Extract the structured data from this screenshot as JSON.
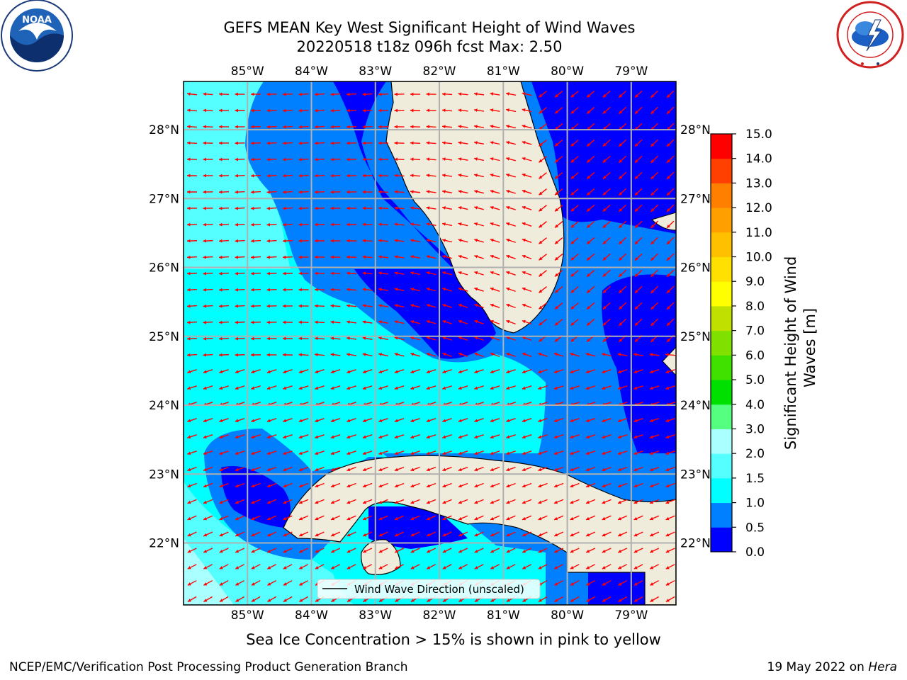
{
  "title": {
    "line1": "GEFS MEAN Key West Significant Height of Wind Waves",
    "line2": "20220518 t18z 096h fcst   Max: 2.50"
  },
  "map": {
    "lon_ticks": [
      "85°W",
      "84°W",
      "83°W",
      "82°W",
      "81°W",
      "80°W",
      "79°W"
    ],
    "lat_ticks": [
      "28°N",
      "27°N",
      "26°N",
      "25°N",
      "24°N",
      "23°N",
      "22°N"
    ],
    "lon_values": [
      -85,
      -84,
      -83,
      -82,
      -81,
      -80,
      -79
    ],
    "lat_values": [
      28,
      27,
      26,
      25,
      24,
      23,
      22
    ],
    "extent": {
      "west": -86.0,
      "east": -78.3,
      "south": 21.1,
      "north": 28.7
    },
    "grid": true,
    "arrow_color": "#ff0000",
    "land_color": "#efecdc",
    "legend_label": "Wind Wave Direction (unscaled)"
  },
  "colorbar": {
    "label": "Significant Height of Wind Waves [m]",
    "label_line1": "Significant Height of Wind",
    "label_line2": "Waves [m]",
    "ticks": [
      "0.0",
      "0.5",
      "1.0",
      "1.5",
      "2.0",
      "3.0",
      "4.0",
      "5.0",
      "6.0",
      "7.0",
      "8.0",
      "9.0",
      "10.0",
      "11.0",
      "12.0",
      "13.0",
      "14.0",
      "15.0"
    ],
    "colors": [
      "#0000ff",
      "#0080ff",
      "#00ffff",
      "#55ffff",
      "#aaffff",
      "#55ff80",
      "#00e000",
      "#40e000",
      "#80e000",
      "#c0e000",
      "#ffff00",
      "#ffe000",
      "#ffc000",
      "#ffa000",
      "#ff8000",
      "#ff4000",
      "#ff0000"
    ]
  },
  "logos": {
    "noaa_text": "NOAA",
    "nws_text": "NATIONAL WEATHER SERVICE"
  },
  "caption": "Sea Ice Concentration > 15% is shown in pink to yellow",
  "footer": {
    "left": "NCEP/EMC/Verification Post Processing Product Generation Branch",
    "right_prefix": "19 May 2022 on ",
    "right_host": "Hera"
  }
}
